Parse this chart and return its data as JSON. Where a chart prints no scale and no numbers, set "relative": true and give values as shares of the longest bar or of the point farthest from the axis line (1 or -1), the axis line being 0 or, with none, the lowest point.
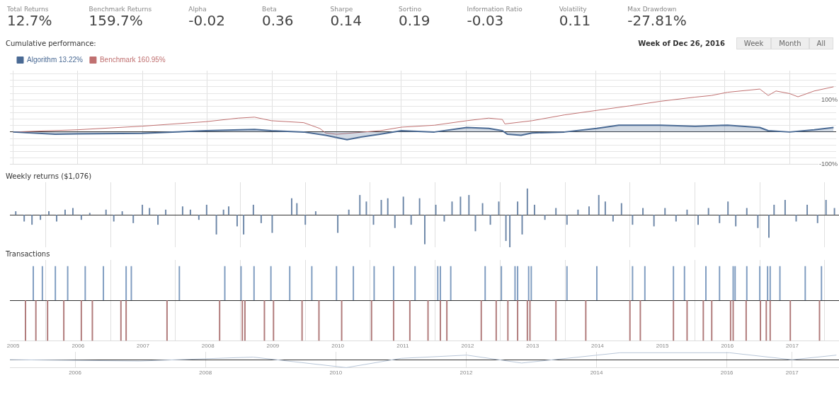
{
  "chart_data": [
    {
      "type": "other",
      "annotations": [
        "Total Returns",
        "12.7%",
        "Benchmark Returns",
        "159.7%",
        "Alpha",
        "-0.02",
        "Beta",
        "0.36",
        "Sharpe",
        "0.14",
        "Sortino",
        "0.19",
        "Information Ratio",
        "-0.03",
        "Volatility",
        "0.11",
        "Max Drawdown",
        "-27.81%"
      ]
    },
    {
      "type": "line",
      "title": "Cumulative performance:",
      "annotations": [
        "Week of Dec 26, 2016",
        "Week",
        "Month",
        "All"
      ],
      "legend": "top left",
      "grid": true,
      "marker": "none",
      "tick_labels": "y",
      "xlim": [
        2004.95,
        2017.72
      ],
      "xticks": [
        {
          "value": 2005,
          "label": null
        },
        {
          "value": 2006,
          "label": null
        },
        {
          "value": 2007,
          "label": null
        },
        {
          "value": 2008,
          "label": null
        },
        {
          "value": 2009,
          "label": null
        },
        {
          "value": 2010,
          "label": null
        },
        {
          "value": 2011,
          "label": null
        },
        {
          "value": 2012,
          "label": null
        },
        {
          "value": 2013,
          "label": null
        },
        {
          "value": 2014,
          "label": null
        },
        {
          "value": 2015,
          "label": null
        },
        {
          "value": 2016,
          "label": null
        },
        {
          "value": 2017,
          "label": null
        }
      ],
      "ylim": [
        -100,
        190
      ],
      "yticks": [
        {
          "value": -100,
          "label": "-100%"
        },
        {
          "value": -80,
          "label": null
        },
        {
          "value": -60,
          "label": null
        },
        {
          "value": -40,
          "label": null
        },
        {
          "value": -20,
          "label": null
        },
        {
          "value": 0,
          "label": null
        },
        {
          "value": 20,
          "label": null
        },
        {
          "value": 40,
          "label": null
        },
        {
          "value": 60,
          "label": null
        },
        {
          "value": 80,
          "label": null
        },
        {
          "value": 100,
          "label": "100%"
        },
        {
          "value": 120,
          "label": null
        },
        {
          "value": 140,
          "label": null
        },
        {
          "value": 160,
          "label": null
        },
        {
          "value": 180,
          "label": null
        }
      ],
      "series": [
        {
          "name": "Algorithm 13.22%",
          "type": "area",
          "color": "#4a6a94",
          "x": [
            2005.0,
            2005.65,
            2006.0,
            2006.99,
            2007.98,
            2008.73,
            2008.99,
            2009.49,
            2009.83,
            2010.16,
            2010.33,
            2010.67,
            2011.0,
            2011.51,
            2012.01,
            2012.35,
            2012.56,
            2012.64,
            2012.85,
            2013.02,
            2013.52,
            2014.02,
            2014.36,
            2015.0,
            2015.54,
            2016.04,
            2016.54,
            2016.67,
            2017.0,
            2017.38,
            2017.68
          ],
          "values": [
            0,
            -7,
            -6,
            -4,
            4,
            8,
            4,
            0,
            -10,
            -24,
            -17,
            -7,
            4,
            0,
            14,
            11,
            4,
            -7,
            -10,
            -3,
            0,
            11,
            21,
            21,
            18,
            21,
            14,
            4,
            0,
            7,
            14
          ]
        },
        {
          "name": "Benchmark 160.95%",
          "type": "line",
          "color": "#c07070",
          "x": [
            2005.0,
            2006.0,
            2006.99,
            2007.98,
            2008.48,
            2008.73,
            2008.99,
            2009.49,
            2009.74,
            2009.83,
            2010.0,
            2010.67,
            2011.0,
            2011.51,
            2012.01,
            2012.35,
            2012.56,
            2012.6,
            2013.02,
            2013.52,
            2014.02,
            2014.53,
            2015.0,
            2015.54,
            2015.79,
            2016.04,
            2016.54,
            2016.67,
            2016.79,
            2017.0,
            2017.13,
            2017.38,
            2017.68
          ],
          "values": [
            0,
            7,
            18,
            32,
            43,
            46,
            35,
            29,
            11,
            -3,
            -7,
            4,
            15,
            21,
            35,
            43,
            39,
            25,
            35,
            53,
            67,
            81,
            95,
            108,
            113,
            123,
            133,
            113,
            127,
            119,
            109,
            127,
            140
          ]
        }
      ]
    },
    {
      "type": "bar",
      "title": "Weekly returns ($1,076)",
      "relative": true,
      "grid": "x",
      "tick_labels": false,
      "xlim": [
        2004.95,
        2017.72
      ],
      "xticks": [
        {
          "value": 2005,
          "label": null
        },
        {
          "value": 2006,
          "label": null
        },
        {
          "value": 2007,
          "label": null
        },
        {
          "value": 2008,
          "label": null
        },
        {
          "value": 2009,
          "label": null
        },
        {
          "value": 2010,
          "label": null
        },
        {
          "value": 2011,
          "label": null
        },
        {
          "value": 2012,
          "label": null
        },
        {
          "value": 2013,
          "label": null
        },
        {
          "value": 2014,
          "label": null
        },
        {
          "value": 2015,
          "label": null
        },
        {
          "value": 2016,
          "label": null
        },
        {
          "value": 2017,
          "label": null
        }
      ],
      "series": [
        {
          "color": "#6d87a8",
          "x": [
            2005.04,
            2005.17,
            2005.29,
            2005.42,
            2005.55,
            2005.67,
            2005.8,
            2005.92,
            2006.05,
            2006.18,
            2006.43,
            2006.55,
            2006.68,
            2006.85,
            2006.99,
            2007.1,
            2007.23,
            2007.35,
            2007.61,
            2007.73,
            2007.86,
            2007.98,
            2008.13,
            2008.24,
            2008.32,
            2008.45,
            2008.55,
            2008.7,
            2008.82,
            2008.99,
            2009.29,
            2009.37,
            2009.5,
            2009.66,
            2010.0,
            2010.17,
            2010.34,
            2010.44,
            2010.55,
            2010.67,
            2010.77,
            2010.88,
            2011.01,
            2011.13,
            2011.26,
            2011.34,
            2011.51,
            2011.64,
            2011.76,
            2011.89,
            2012.02,
            2012.12,
            2012.23,
            2012.35,
            2012.48,
            2012.59,
            2012.65,
            2012.77,
            2012.84,
            2012.92,
            2013.03,
            2013.19,
            2013.36,
            2013.53,
            2013.7,
            2013.87,
            2014.02,
            2014.12,
            2014.24,
            2014.37,
            2014.54,
            2014.7,
            2014.87,
            2015.04,
            2015.21,
            2015.38,
            2015.55,
            2015.71,
            2015.88,
            2016.01,
            2016.13,
            2016.3,
            2016.47,
            2016.64,
            2016.72,
            2016.89,
            2017.06,
            2017.23,
            2017.39,
            2017.52,
            2017.65
          ],
          "values": [
            0.1,
            -0.2,
            -0.3,
            -0.15,
            0.1,
            -0.2,
            0.15,
            0.2,
            -0.15,
            0.05,
            0.15,
            -0.2,
            0.1,
            -0.25,
            0.3,
            0.2,
            -0.3,
            0.15,
            0.25,
            0.15,
            -0.15,
            0.3,
            -0.6,
            0.15,
            0.25,
            -0.35,
            -0.6,
            0.3,
            -0.25,
            -0.55,
            0.5,
            0.35,
            -0.3,
            0.1,
            -0.55,
            0.15,
            0.6,
            0.4,
            -0.3,
            0.45,
            0.5,
            -0.4,
            0.55,
            -0.3,
            0.5,
            -0.9,
            0.3,
            -0.2,
            0.4,
            0.55,
            0.6,
            -0.5,
            0.35,
            -0.3,
            0.4,
            -0.8,
            -1,
            0.4,
            -0.6,
            0.8,
            0.3,
            -0.15,
            0.2,
            -0.3,
            0.15,
            0.25,
            0.6,
            0.4,
            -0.2,
            0.35,
            -0.3,
            0.2,
            -0.35,
            0.2,
            -0.2,
            0.15,
            -0.3,
            0.2,
            -0.25,
            0.4,
            -0.35,
            0.2,
            -0.4,
            -0.7,
            0.3,
            0.45,
            -0.2,
            0.3,
            -0.25,
            0.45,
            0.2
          ]
        }
      ]
    },
    {
      "type": "bar",
      "title": "Transactions",
      "relative": true,
      "grid": "x",
      "tick_labels": "x",
      "xlim": [
        2004.95,
        2017.72
      ],
      "xticks": [
        2005,
        2006,
        2007,
        2008,
        2009,
        2010,
        2011,
        2012,
        2013,
        2014,
        2015,
        2016,
        2017
      ],
      "series": [
        {
          "color": "#7f9cc0",
          "x": [
            2005.31,
            2005.45,
            2005.65,
            2005.84,
            2006.11,
            2006.39,
            2006.74,
            2006.82,
            2007.56,
            2008.26,
            2008.51,
            2008.71,
            2008.97,
            2009.26,
            2009.6,
            2009.98,
            2010.24,
            2010.56,
            2010.86,
            2011.19,
            2011.54,
            2011.58,
            2011.74,
            2012.27,
            2012.52,
            2012.73,
            2012.77,
            2012.94,
            2012.98,
            2013.53,
            2013.99,
            2014.54,
            2014.73,
            2015.17,
            2015.34,
            2015.67,
            2015.88,
            2016.09,
            2016.12,
            2016.3,
            2016.5,
            2016.62,
            2016.66,
            2016.81,
            2017.2,
            2017.45
          ],
          "values": [
            0.84,
            0.84,
            0.84,
            0.84,
            0.84,
            0.84,
            0.84,
            0.84,
            0.84,
            0.84,
            0.84,
            0.84,
            0.84,
            0.84,
            0.84,
            0.84,
            0.84,
            0.84,
            0.84,
            0.84,
            0.84,
            0.84,
            0.84,
            0.84,
            0.84,
            0.84,
            0.84,
            0.84,
            0.84,
            0.84,
            0.84,
            0.84,
            0.84,
            0.84,
            0.84,
            0.84,
            0.84,
            0.84,
            0.84,
            0.84,
            0.84,
            0.84,
            0.84,
            0.84,
            0.84,
            0.84
          ]
        },
        {
          "color": "#b07a7a",
          "x": [
            2005.19,
            2005.35,
            2005.53,
            2005.78,
            2006.05,
            2006.22,
            2006.66,
            2006.74,
            2007.37,
            2008.18,
            2008.53,
            2008.57,
            2008.87,
            2009.01,
            2009.45,
            2009.71,
            2010.06,
            2010.52,
            2010.86,
            2011.11,
            2011.39,
            2011.58,
            2011.68,
            2012.21,
            2012.44,
            2012.62,
            2012.77,
            2012.92,
            2012.96,
            2013.36,
            2013.82,
            2014.5,
            2014.66,
            2015.17,
            2015.38,
            2015.63,
            2015.76,
            2016.05,
            2016.09,
            2016.29,
            2016.51,
            2016.6,
            2016.66,
            2016.97,
            2017.42
          ],
          "values": [
            -1,
            -1,
            -1,
            -1,
            -1,
            -1,
            -1,
            -1,
            -1,
            -1,
            -1,
            -1,
            -1,
            -1,
            -1,
            -1,
            -1,
            -1,
            -1,
            -1,
            -1,
            -1,
            -1,
            -1,
            -1,
            -1,
            -1,
            -1,
            -1,
            -1,
            -1,
            -1,
            -1,
            -1,
            -1,
            -1,
            -1,
            -1,
            -1,
            -1,
            -1,
            -1,
            -1,
            -1,
            -1
          ]
        }
      ]
    },
    {
      "type": "line",
      "relative": true,
      "marker": "none",
      "tick_labels": "x",
      "grid": "x",
      "xlim": [
        2005,
        2017.72
      ],
      "xticks": [
        2006,
        2008,
        2010,
        2012,
        2014,
        2016,
        2017
      ],
      "series": [
        {
          "color": "#b8c6d8",
          "x": [
            2005.0,
            2006.99,
            2008.73,
            2010.16,
            2011.0,
            2012.01,
            2012.85,
            2014.36,
            2016.04,
            2017.0,
            2017.68
          ],
          "values": [
            0,
            -0.17,
            0.33,
            -1,
            0.17,
            0.58,
            -0.42,
            0.88,
            0.88,
            0,
            0.58
          ]
        }
      ]
    }
  ]
}
